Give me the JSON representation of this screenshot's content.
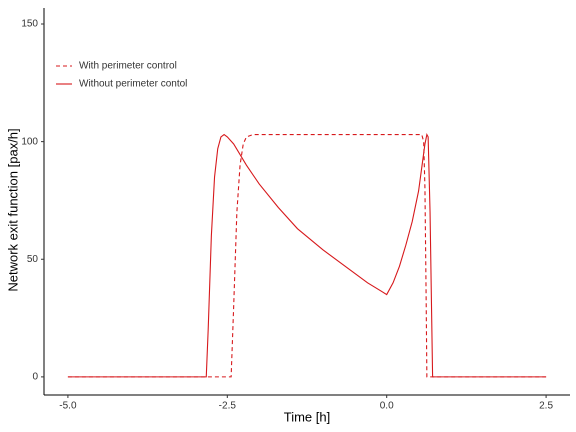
{
  "chart_data": {
    "type": "line",
    "xlabel": "Time [h]",
    "ylabel": "Network exit function [pax/h]",
    "xlim": [
      -5.375,
      2.875
    ],
    "ylim": [
      -7.7,
      156.8
    ],
    "xticks": [
      {
        "value": -5,
        "label": "-5.0"
      },
      {
        "value": -2.5,
        "label": "-2.5"
      },
      {
        "value": 0,
        "label": "0.0"
      },
      {
        "value": 2.5,
        "label": "2.5"
      }
    ],
    "yticks": [
      0,
      50,
      100,
      150
    ],
    "legend": "top-left",
    "series": [
      {
        "name": "With perimeter control",
        "color": "#d7191c",
        "dash": "dashed",
        "x": [
          -5,
          -2.44,
          -2.4,
          -2.35,
          -2.3,
          -2.25,
          -2.2,
          -2.1,
          0.55,
          0.58,
          0.6,
          0.62,
          0.63,
          2.5
        ],
        "values": [
          0,
          0,
          30,
          70,
          90,
          99,
          102,
          103,
          103,
          100,
          80,
          30,
          0,
          0
        ]
      },
      {
        "name": "Without perimeter contol",
        "color": "#d7191c",
        "dash": "solid",
        "x": [
          -5,
          -2.83,
          -2.8,
          -2.75,
          -2.7,
          -2.65,
          -2.6,
          -2.55,
          -2.5,
          -2.4,
          -2.2,
          -2.0,
          -1.7,
          -1.4,
          -1.0,
          -0.6,
          -0.3,
          0.0,
          0.1,
          0.2,
          0.3,
          0.4,
          0.5,
          0.55,
          0.6,
          0.63,
          0.65,
          0.68,
          0.72,
          2.5
        ],
        "values": [
          0,
          0,
          20,
          60,
          85,
          97,
          102,
          103,
          102,
          99,
          90,
          82,
          72,
          63,
          54,
          46,
          40,
          35,
          40,
          47,
          56,
          66,
          79,
          89,
          99,
          103,
          102,
          70,
          0,
          0
        ]
      }
    ]
  }
}
